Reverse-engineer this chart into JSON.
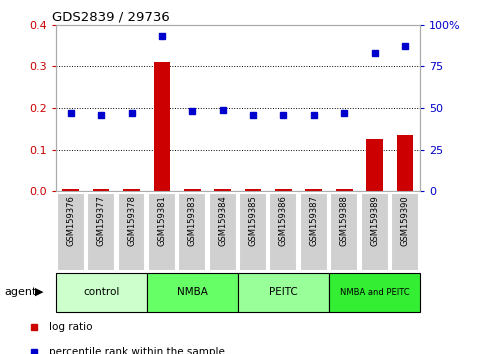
{
  "title": "GDS2839 / 29736",
  "samples": [
    "GSM159376",
    "GSM159377",
    "GSM159378",
    "GSM159381",
    "GSM159383",
    "GSM159384",
    "GSM159385",
    "GSM159386",
    "GSM159387",
    "GSM159388",
    "GSM159389",
    "GSM159390"
  ],
  "log_ratio": [
    0.005,
    0.005,
    0.005,
    0.31,
    0.005,
    0.005,
    0.005,
    0.005,
    0.005,
    0.005,
    0.125,
    0.135
  ],
  "percentile_rank": [
    47,
    46,
    47,
    93,
    48,
    49,
    46,
    46,
    46,
    47,
    83,
    87
  ],
  "groups": [
    {
      "label": "control",
      "color": "#ccffcc",
      "start": 0,
      "end": 3
    },
    {
      "label": "NMBA",
      "color": "#66ff66",
      "start": 3,
      "end": 6
    },
    {
      "label": "PEITC",
      "color": "#99ff99",
      "start": 6,
      "end": 9
    },
    {
      "label": "NMBA and PEITC",
      "color": "#33ee33",
      "start": 9,
      "end": 12
    }
  ],
  "ylim_left": [
    0,
    0.4
  ],
  "ylim_right": [
    0,
    100
  ],
  "yticks_left": [
    0,
    0.1,
    0.2,
    0.3,
    0.4
  ],
  "yticks_right": [
    0,
    25,
    50,
    75,
    100
  ],
  "bar_color": "#cc0000",
  "dot_color": "#0000cc",
  "left_axis_color": "#cc0000",
  "right_axis_color": "#0000cc",
  "label_bg": "#d0d0d0",
  "figsize": [
    4.83,
    3.54
  ],
  "dpi": 100
}
